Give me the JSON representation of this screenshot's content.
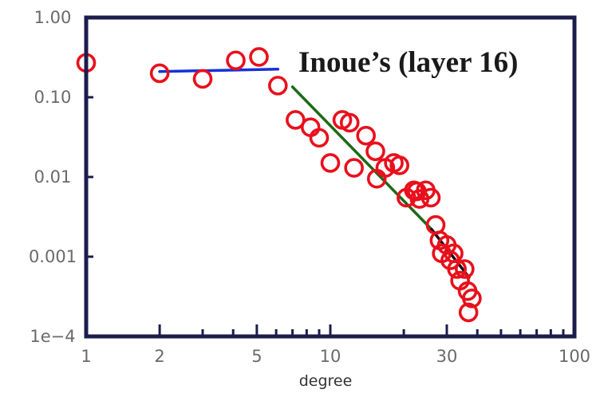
{
  "chart_data": {
    "type": "scatter",
    "title": "",
    "xlabel": "degree",
    "ylabel": "",
    "x_scale": "log",
    "y_scale": "log",
    "xlim": [
      1,
      100
    ],
    "ylim": [
      0.0001,
      1
    ],
    "x_ticks": [
      {
        "value": 1,
        "label": "1"
      },
      {
        "value": 2,
        "label": "2"
      },
      {
        "value": 5,
        "label": "5"
      },
      {
        "value": 10,
        "label": "10"
      },
      {
        "value": 30,
        "label": "30"
      },
      {
        "value": 100,
        "label": "100"
      }
    ],
    "x_minor_ticks": [
      3,
      4,
      6,
      7,
      8,
      9,
      20,
      40,
      50,
      60,
      70,
      80,
      90
    ],
    "y_ticks": [
      {
        "value": 1,
        "label": "1.00"
      },
      {
        "value": 0.1,
        "label": "0.10"
      },
      {
        "value": 0.01,
        "label": "0.01"
      },
      {
        "value": 0.001,
        "label": "0.001"
      },
      {
        "value": 0.0001,
        "label": "1e−4"
      }
    ],
    "annotation": "Inoue’s (layer 16)",
    "grid": false,
    "legend": "none",
    "marker": "open-circle",
    "marker_color": "#e8101c",
    "points": [
      [
        1.0,
        0.27
      ],
      [
        2.0,
        0.2
      ],
      [
        3.0,
        0.17
      ],
      [
        4.1,
        0.29
      ],
      [
        5.1,
        0.32
      ],
      [
        6.1,
        0.14
      ],
      [
        7.2,
        0.052
      ],
      [
        8.3,
        0.042
      ],
      [
        9.0,
        0.031
      ],
      [
        10.0,
        0.015
      ],
      [
        11.2,
        0.052
      ],
      [
        12.0,
        0.048
      ],
      [
        12.5,
        0.013
      ],
      [
        14.0,
        0.033
      ],
      [
        15.3,
        0.021
      ],
      [
        15.5,
        0.0095
      ],
      [
        16.8,
        0.013
      ],
      [
        18.2,
        0.015
      ],
      [
        19.2,
        0.014
      ],
      [
        20.5,
        0.0055
      ],
      [
        22.0,
        0.0068
      ],
      [
        22.6,
        0.0066
      ],
      [
        23.2,
        0.0053
      ],
      [
        24.6,
        0.0068
      ],
      [
        25.8,
        0.0055
      ],
      [
        27.0,
        0.0025
      ],
      [
        28.0,
        0.0016
      ],
      [
        28.6,
        0.0011
      ],
      [
        30.0,
        0.0014
      ],
      [
        31.0,
        0.0009
      ],
      [
        32.0,
        0.0011
      ],
      [
        33.0,
        0.0007
      ],
      [
        34.0,
        0.0005
      ],
      [
        35.5,
        0.0007
      ],
      [
        36.5,
        0.00037
      ],
      [
        38.0,
        0.0003
      ],
      [
        36.8,
        0.0002
      ]
    ],
    "fits": [
      {
        "color": "#1530d8",
        "points": [
          [
            2.0,
            0.21
          ],
          [
            6.1,
            0.225
          ]
        ]
      },
      {
        "color": "#1c6a16",
        "points": [
          [
            7.0,
            0.135
          ],
          [
            26.0,
            0.0022
          ]
        ]
      },
      {
        "color": "#111111",
        "points": [
          [
            26.0,
            0.0022
          ],
          [
            37.0,
            0.00055
          ]
        ]
      }
    ],
    "colors": {
      "frame": "#1c1c4e",
      "tick_label": "#6a6a6a"
    }
  }
}
